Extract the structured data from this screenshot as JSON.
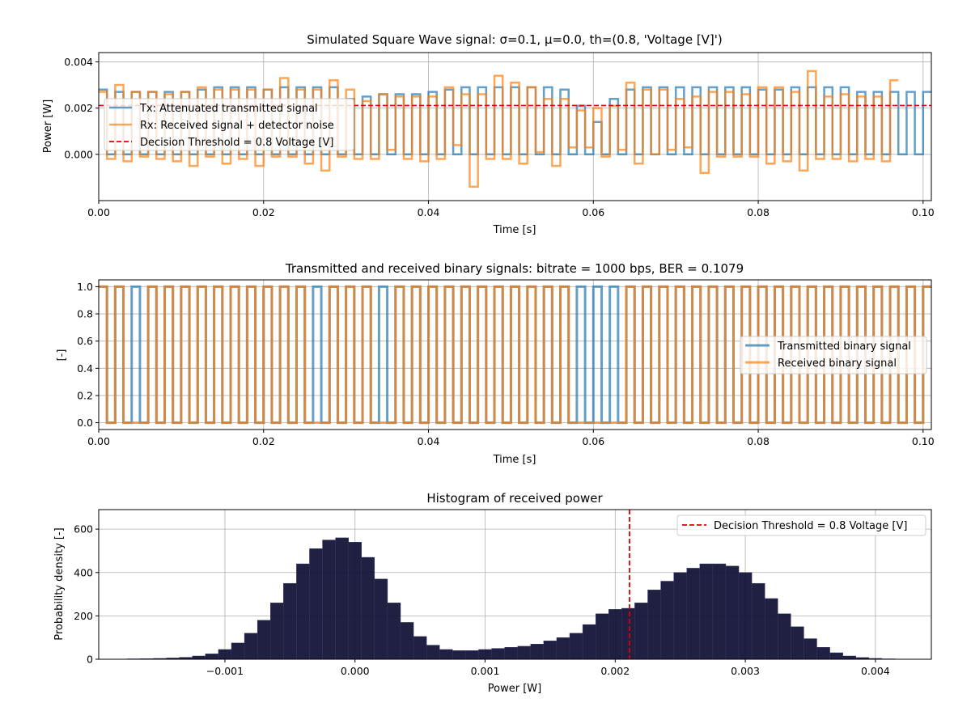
{
  "figure": {
    "background": "#ffffff"
  },
  "charts": [
    {
      "id": "signal",
      "title": "Simulated Square Wave signal: σ=0.1, μ=0.0, th=(0.8, 'Voltage [V]')",
      "xlabel": "Time [s]",
      "ylabel": "Power [W]",
      "xticks": [
        "0.00",
        "0.02",
        "0.04",
        "0.06",
        "0.08",
        "0.10"
      ],
      "yticks": [
        "0.000",
        "0.002",
        "0.004"
      ],
      "legend": [
        "Tx: Attenuated transmitted signal",
        "Rx: Received signal + detector noise",
        "Decision Threshold = 0.8 Voltage [V]"
      ]
    },
    {
      "id": "binary",
      "title": "Transmitted and received binary signals: bitrate = 1000 bps, BER = 0.1079",
      "xlabel": "Time [s]",
      "ylabel": "[-]",
      "xticks": [
        "0.00",
        "0.02",
        "0.04",
        "0.06",
        "0.08",
        "0.10"
      ],
      "yticks": [
        "0.0",
        "0.2",
        "0.4",
        "0.6",
        "0.8",
        "1.0"
      ],
      "legend": [
        "Transmitted binary signal",
        "Received binary signal"
      ]
    },
    {
      "id": "hist",
      "title": "Histogram of received power",
      "xlabel": "Power [W]",
      "ylabel": "Probability density [-]",
      "xticks": [
        "−0.001",
        "0.000",
        "0.001",
        "0.002",
        "0.003",
        "0.004"
      ],
      "yticks": [
        "0",
        "200",
        "400",
        "600"
      ],
      "legend": [
        "Decision Threshold = 0.8 Voltage [V]"
      ]
    }
  ],
  "colors": {
    "tx": "#1f77b4",
    "rx": "#ff7f0e",
    "threshold": "#e00000",
    "hist": "#0d0d33",
    "grid": "#b0b0b0"
  },
  "chart_data": [
    {
      "type": "line",
      "title": "Simulated Square Wave signal: σ=0.1, μ=0.0, th=(0.8, 'Voltage [V]')",
      "xlabel": "Time [s]",
      "ylabel": "Power [W]",
      "xlim": [
        0.0,
        0.101
      ],
      "ylim": [
        -0.002,
        0.0044
      ],
      "grid": true,
      "legend_position": "center-left",
      "step_seconds": 0.001,
      "threshold": 0.00211,
      "series": [
        {
          "name": "Tx: Attenuated transmitted signal",
          "style": "step",
          "values": [
            0.0028,
            0,
            0.0027,
            0,
            0.0027,
            0,
            0.0027,
            0,
            0.0027,
            0,
            0.0027,
            0,
            0.0028,
            0,
            0.0029,
            0,
            0.0029,
            0,
            0.0029,
            0,
            0.0028,
            0,
            0.0029,
            0,
            0.0029,
            0,
            0.0029,
            0,
            0.0029,
            0,
            0.0024,
            0,
            0.0025,
            0,
            0.0026,
            0,
            0.0026,
            0,
            0.0026,
            0,
            0.0027,
            0,
            0.0028,
            0,
            0.0029,
            0,
            0.0029,
            0,
            0.0029,
            0,
            0.0029,
            0,
            0.0029,
            0,
            0.0029,
            0,
            0.0028,
            0,
            0.0021,
            0,
            0.0014,
            0,
            0.0024,
            0,
            0.0028,
            0,
            0.0029,
            0,
            0.0029,
            0,
            0.0029,
            0,
            0.0029,
            0,
            0.0029,
            0,
            0.0029,
            0,
            0.0029,
            0,
            0.0028,
            0,
            0.0028,
            0,
            0.0029,
            0,
            0.0029,
            0,
            0.0029,
            0,
            0.0029,
            0,
            0.0027,
            0,
            0.0027,
            0,
            0.0027,
            0,
            0.0027,
            0,
            0.0027,
            0
          ]
        },
        {
          "name": "Rx: Received signal + detector noise",
          "style": "step",
          "values": [
            0.0027,
            -0.0002,
            0.003,
            -0.0003,
            0.0027,
            -0.0001,
            0.0027,
            -0.0002,
            0.0026,
            -0.0003,
            0.0027,
            -0.0005,
            0.0029,
            -0.0001,
            0.0028,
            -0.0004,
            0.0028,
            -0.0002,
            0.0028,
            -0.0005,
            0.0028,
            -0.0001,
            0.0033,
            -0.0001,
            0.0028,
            -0.0004,
            0.0028,
            -0.0007,
            0.0032,
            -0.0001,
            0.0028,
            -0.0002,
            0.0023,
            -0.0002,
            0.0026,
            0.0002,
            0.0025,
            -0.0002,
            0.0025,
            -0.0003,
            0.0025,
            -0.0002,
            0.0029,
            0.0004,
            0.0026,
            -0.0014,
            0.0026,
            -0.0002,
            0.0034,
            -0.0002,
            0.0031,
            -0.0004,
            0.0029,
            0.0001,
            0.0024,
            -0.0005,
            0.0024,
            0.0003,
            0.0019,
            0.0003,
            0.002,
            -0.0001,
            0.0021,
            0.0002,
            0.0031,
            -0.0004,
            0.0028,
            0.0,
            0.0028,
            0.0002,
            0.0024,
            0.0003,
            0.0025,
            -0.0008,
            0.0027,
            -0.0001,
            0.0027,
            -0.0001,
            0.0026,
            -0.0001,
            0.0029,
            -0.0004,
            0.0029,
            -0.0003,
            0.0027,
            -0.0007,
            0.0036,
            -0.0002,
            0.0025,
            -0.0002,
            0.0026,
            -0.0003,
            0.0025,
            -0.0002,
            0.0025,
            -0.0003,
            0.0032
          ]
        },
        {
          "name": "Decision Threshold = 0.8 Voltage [V]",
          "style": "dashed",
          "values": [
            0.00211
          ]
        }
      ]
    },
    {
      "type": "line",
      "title": "Transmitted and received binary signals: bitrate = 1000 bps, BER = 0.1079",
      "xlabel": "Time [s]",
      "ylabel": "[-]",
      "xlim": [
        0.0,
        0.101
      ],
      "ylim": [
        -0.05,
        1.05
      ],
      "grid": true,
      "legend_position": "center-right",
      "step_seconds": 0.001,
      "series": [
        {
          "name": "Transmitted binary signal",
          "style": "step",
          "values": [
            1,
            0,
            1,
            0,
            1,
            0,
            1,
            0,
            1,
            0,
            1,
            0,
            1,
            0,
            1,
            0,
            1,
            0,
            1,
            0,
            1,
            0,
            1,
            0,
            1,
            0,
            1,
            0,
            1,
            0,
            1,
            0,
            1,
            0,
            1,
            0,
            1,
            0,
            1,
            0,
            1,
            0,
            1,
            0,
            1,
            0,
            1,
            0,
            1,
            0,
            1,
            0,
            1,
            0,
            1,
            0,
            1,
            0,
            1,
            0,
            1,
            0,
            1,
            0,
            1,
            0,
            1,
            0,
            1,
            0,
            1,
            0,
            1,
            0,
            1,
            0,
            1,
            0,
            1,
            0,
            1,
            0,
            1,
            0,
            1,
            0,
            1,
            0,
            1,
            0,
            1,
            0,
            1,
            0,
            1,
            0,
            1,
            0,
            1,
            0,
            1
          ]
        },
        {
          "name": "Received binary signal",
          "style": "step",
          "values": [
            1,
            0,
            1,
            0,
            0,
            0,
            1,
            0,
            1,
            0,
            1,
            0,
            1,
            0,
            1,
            0,
            1,
            0,
            1,
            0,
            1,
            0,
            1,
            0,
            1,
            0,
            0,
            0,
            1,
            0,
            1,
            0,
            1,
            0,
            0,
            0,
            1,
            0,
            1,
            0,
            1,
            0,
            1,
            0,
            1,
            0,
            1,
            0,
            1,
            0,
            1,
            0,
            1,
            0,
            1,
            0,
            1,
            0,
            0,
            0,
            0,
            0,
            0,
            0,
            1,
            0,
            1,
            0,
            1,
            0,
            1,
            0,
            1,
            0,
            1,
            0,
            1,
            0,
            1,
            0,
            1,
            0,
            1,
            0,
            1,
            0,
            1,
            0,
            1,
            0,
            1,
            0,
            1,
            0,
            1,
            0,
            1,
            0,
            1,
            0,
            1
          ]
        }
      ]
    },
    {
      "type": "bar",
      "title": "Histogram of received power",
      "xlabel": "Power [W]",
      "ylabel": "Probability density [-]",
      "xlim": [
        -0.00197,
        0.00443
      ],
      "ylim": [
        0,
        690
      ],
      "grid": true,
      "legend_position": "top-right",
      "threshold": 0.00211,
      "bins": {
        "x": [
          -0.0018,
          -0.0017,
          -0.0016,
          -0.0015,
          -0.0014,
          -0.0013,
          -0.0012,
          -0.0011,
          -0.001,
          -0.0009,
          -0.0008,
          -0.0007,
          -0.0006,
          -0.0005,
          -0.0004,
          -0.0003,
          -0.0002,
          -0.0001,
          0.0,
          0.0001,
          0.0002,
          0.0003,
          0.0004,
          0.0005,
          0.0006,
          0.0007,
          0.0008,
          0.0009,
          0.001,
          0.0011,
          0.0012,
          0.0013,
          0.0014,
          0.0015,
          0.0016,
          0.0017,
          0.0018,
          0.0019,
          0.002,
          0.0021,
          0.0022,
          0.0023,
          0.0024,
          0.0025,
          0.0026,
          0.0027,
          0.0028,
          0.0029,
          0.003,
          0.0031,
          0.0032,
          0.0033,
          0.0034,
          0.0035,
          0.0036,
          0.0037,
          0.0038,
          0.0039,
          0.004,
          0.0041,
          0.0042
        ],
        "values": [
          0,
          2,
          3,
          4,
          6,
          9,
          15,
          25,
          45,
          75,
          120,
          180,
          260,
          350,
          440,
          510,
          550,
          560,
          540,
          470,
          370,
          260,
          170,
          105,
          65,
          45,
          40,
          40,
          45,
          50,
          55,
          60,
          70,
          85,
          100,
          120,
          160,
          210,
          230,
          235,
          260,
          320,
          360,
          400,
          420,
          440,
          440,
          430,
          400,
          350,
          280,
          210,
          150,
          95,
          55,
          30,
          15,
          8,
          4,
          2,
          1
        ]
      }
    }
  ]
}
